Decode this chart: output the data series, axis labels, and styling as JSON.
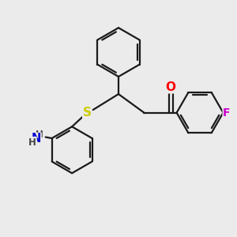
{
  "background_color": "#ebebeb",
  "bond_color": "#1a1a1a",
  "bond_width": 1.6,
  "atom_colors": {
    "O": "#ff0000",
    "S": "#cccc00",
    "N": "#0000cc",
    "F": "#cc00cc",
    "H": "#444444"
  },
  "font_size": 9.5,
  "fig_size": [
    3.0,
    3.0
  ],
  "dpi": 100
}
